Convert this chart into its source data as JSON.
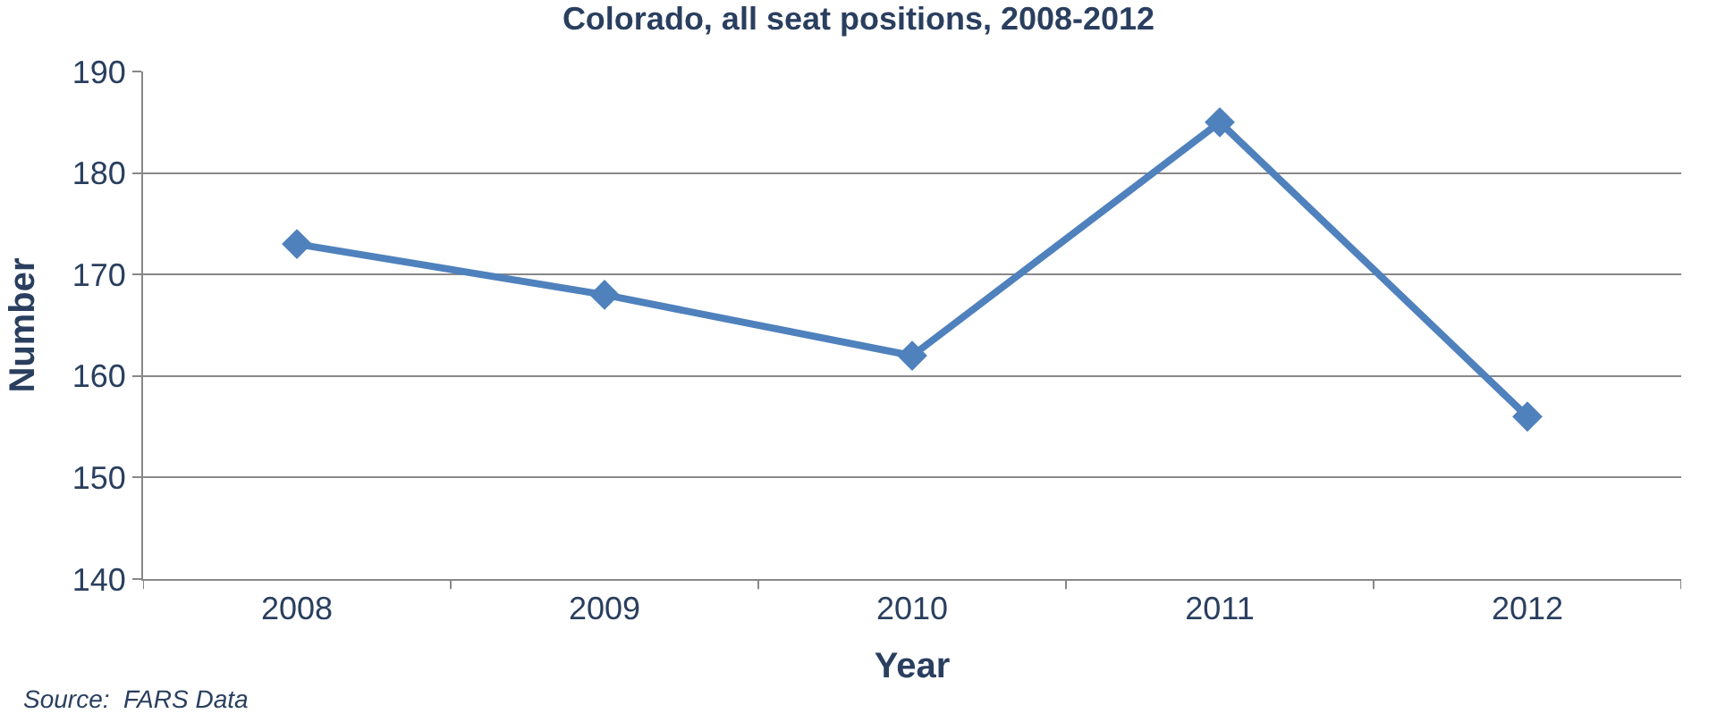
{
  "chart_data": {
    "type": "line",
    "title": "Colorado, all seat positions, 2008-2012",
    "xlabel": "Year",
    "ylabel": "Number",
    "categories": [
      "2008",
      "2009",
      "2010",
      "2011",
      "2012"
    ],
    "series": [
      {
        "color": "#4f81bd",
        "values": [
          173,
          168,
          162,
          185,
          156
        ]
      }
    ],
    "ylim": [
      140,
      190
    ],
    "yticks": [
      140,
      150,
      160,
      170,
      180,
      190
    ],
    "grid": "y",
    "marker": "diamond",
    "line_style": "solid",
    "legend": false,
    "annotations": [
      "Source:  FARS Data"
    ]
  }
}
